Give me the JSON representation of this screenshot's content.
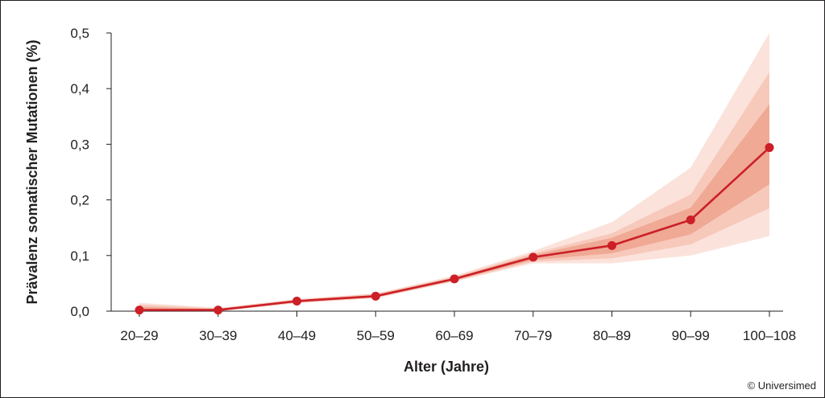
{
  "chart_data": {
    "type": "line",
    "xlabel": "Alter (Jahre)",
    "ylabel": "Prävalenz somatischer Mutationen (%)",
    "ylim": [
      0,
      0.5
    ],
    "yticks": [
      "0,0",
      "0,1",
      "0,2",
      "0,3",
      "0,4",
      "0,5"
    ],
    "ytick_values": [
      0,
      0.1,
      0.2,
      0.3,
      0.4,
      0.5
    ],
    "categories": [
      "20–29",
      "30–39",
      "40–49",
      "50–59",
      "60–69",
      "70–79",
      "80–89",
      "90–99",
      "100–108"
    ],
    "series": [
      {
        "values": [
          0.002,
          0.002,
          0.018,
          0.027,
          0.058,
          0.097,
          0.118,
          0.164,
          0.294
        ]
      }
    ],
    "bands": [
      {
        "lower": [
          0.0,
          0.0,
          0.014,
          0.023,
          0.053,
          0.086,
          0.086,
          0.1,
          0.135
        ],
        "upper": [
          0.015,
          0.006,
          0.022,
          0.032,
          0.064,
          0.108,
          0.16,
          0.258,
          0.5
        ]
      },
      {
        "lower": [
          0.0,
          0.0,
          0.015,
          0.024,
          0.054,
          0.089,
          0.095,
          0.12,
          0.185
        ],
        "upper": [
          0.012,
          0.005,
          0.021,
          0.031,
          0.062,
          0.104,
          0.14,
          0.21,
          0.43
        ]
      },
      {
        "lower": [
          0.0,
          0.0,
          0.016,
          0.025,
          0.055,
          0.092,
          0.104,
          0.138,
          0.228
        ],
        "upper": [
          0.008,
          0.004,
          0.02,
          0.029,
          0.06,
          0.101,
          0.132,
          0.186,
          0.372
        ]
      }
    ],
    "band_colors": [
      "#fbe3dc",
      "#f7c9bb",
      "#efa995"
    ],
    "line_color": "#cc1f27",
    "grid": false
  },
  "credit": "© Universimed"
}
